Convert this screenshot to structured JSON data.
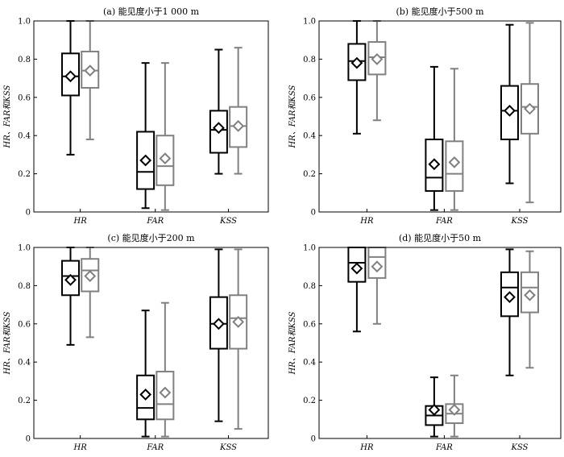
{
  "chart_data": [
    {
      "type": "box",
      "title": "(a) 能见度小于1 000 m",
      "ylabel": "HR、FAR和KSS",
      "ylim": [
        0,
        1.0
      ],
      "yticks": [
        "0",
        "0.2",
        "0.4",
        "0.6",
        "0.8",
        "1.0"
      ],
      "categories": [
        "HR",
        "FAR",
        "KSS"
      ],
      "series": [
        {
          "color": "#000000",
          "boxes": [
            {
              "min": 0.3,
              "q1": 0.61,
              "median": 0.71,
              "q3": 0.83,
              "max": 1.0,
              "mean": 0.71
            },
            {
              "min": 0.02,
              "q1": 0.12,
              "median": 0.21,
              "q3": 0.42,
              "max": 0.78,
              "mean": 0.27
            },
            {
              "min": 0.2,
              "q1": 0.31,
              "median": 0.43,
              "q3": 0.53,
              "max": 0.85,
              "mean": 0.44
            }
          ]
        },
        {
          "color": "#808080",
          "boxes": [
            {
              "min": 0.38,
              "q1": 0.65,
              "median": 0.74,
              "q3": 0.84,
              "max": 1.0,
              "mean": 0.74
            },
            {
              "min": 0.01,
              "q1": 0.14,
              "median": 0.24,
              "q3": 0.4,
              "max": 0.78,
              "mean": 0.28
            },
            {
              "min": 0.2,
              "q1": 0.34,
              "median": 0.45,
              "q3": 0.55,
              "max": 0.86,
              "mean": 0.45
            }
          ]
        }
      ]
    },
    {
      "type": "box",
      "title": "(b) 能见度小于500 m",
      "ylabel": "HR、FAR和KSS",
      "ylim": [
        0,
        1.0
      ],
      "yticks": [
        "0",
        "0.2",
        "0.4",
        "0.6",
        "0.8",
        "1.0"
      ],
      "categories": [
        "HR",
        "FAR",
        "KSS"
      ],
      "series": [
        {
          "color": "#000000",
          "boxes": [
            {
              "min": 0.41,
              "q1": 0.69,
              "median": 0.79,
              "q3": 0.88,
              "max": 1.0,
              "mean": 0.78
            },
            {
              "min": 0.01,
              "q1": 0.11,
              "median": 0.18,
              "q3": 0.38,
              "max": 0.76,
              "mean": 0.25
            },
            {
              "min": 0.15,
              "q1": 0.38,
              "median": 0.53,
              "q3": 0.66,
              "max": 0.98,
              "mean": 0.53
            }
          ]
        },
        {
          "color": "#808080",
          "boxes": [
            {
              "min": 0.48,
              "q1": 0.72,
              "median": 0.81,
              "q3": 0.89,
              "max": 1.0,
              "mean": 0.8
            },
            {
              "min": 0.01,
              "q1": 0.11,
              "median": 0.2,
              "q3": 0.37,
              "max": 0.75,
              "mean": 0.26
            },
            {
              "min": 0.05,
              "q1": 0.41,
              "median": 0.55,
              "q3": 0.67,
              "max": 0.99,
              "mean": 0.54
            }
          ]
        }
      ]
    },
    {
      "type": "box",
      "title": "(c) 能见度小于200 m",
      "ylabel": "HR、FAR和KSS",
      "ylim": [
        0,
        1.0
      ],
      "yticks": [
        "0",
        "0.2",
        "0.4",
        "0.6",
        "0.8",
        "1.0"
      ],
      "categories": [
        "HR",
        "FAR",
        "KSS"
      ],
      "series": [
        {
          "color": "#000000",
          "boxes": [
            {
              "min": 0.49,
              "q1": 0.75,
              "median": 0.85,
              "q3": 0.93,
              "max": 1.0,
              "mean": 0.83
            },
            {
              "min": 0.01,
              "q1": 0.1,
              "median": 0.16,
              "q3": 0.33,
              "max": 0.67,
              "mean": 0.23
            },
            {
              "min": 0.09,
              "q1": 0.47,
              "median": 0.6,
              "q3": 0.74,
              "max": 0.99,
              "mean": 0.6
            }
          ]
        },
        {
          "color": "#808080",
          "boxes": [
            {
              "min": 0.53,
              "q1": 0.77,
              "median": 0.88,
              "q3": 0.94,
              "max": 1.0,
              "mean": 0.85
            },
            {
              "min": 0.01,
              "q1": 0.1,
              "median": 0.18,
              "q3": 0.35,
              "max": 0.71,
              "mean": 0.24
            },
            {
              "min": 0.05,
              "q1": 0.47,
              "median": 0.63,
              "q3": 0.75,
              "max": 0.99,
              "mean": 0.61
            }
          ]
        }
      ]
    },
    {
      "type": "box",
      "title": "(d) 能见度小于50 m",
      "ylabel": "HR、FAR和KSS",
      "ylim": [
        0,
        1.0
      ],
      "yticks": [
        "0",
        "0.2",
        "0.4",
        "0.6",
        "0.8",
        "1.0"
      ],
      "categories": [
        "HR",
        "FAR",
        "KSS"
      ],
      "series": [
        {
          "color": "#000000",
          "boxes": [
            {
              "min": 0.56,
              "q1": 0.82,
              "median": 0.92,
              "q3": 1.0,
              "max": 1.0,
              "mean": 0.89
            },
            {
              "min": 0.01,
              "q1": 0.07,
              "median": 0.12,
              "q3": 0.17,
              "max": 0.32,
              "mean": 0.15
            },
            {
              "min": 0.33,
              "q1": 0.64,
              "median": 0.79,
              "q3": 0.87,
              "max": 0.99,
              "mean": 0.74
            }
          ]
        },
        {
          "color": "#808080",
          "boxes": [
            {
              "min": 0.6,
              "q1": 0.84,
              "median": 0.95,
              "q3": 1.0,
              "max": 1.0,
              "mean": 0.9
            },
            {
              "min": 0.01,
              "q1": 0.08,
              "median": 0.13,
              "q3": 0.18,
              "max": 0.33,
              "mean": 0.15
            },
            {
              "min": 0.37,
              "q1": 0.66,
              "median": 0.79,
              "q3": 0.87,
              "max": 0.98,
              "mean": 0.75
            }
          ]
        }
      ]
    }
  ]
}
